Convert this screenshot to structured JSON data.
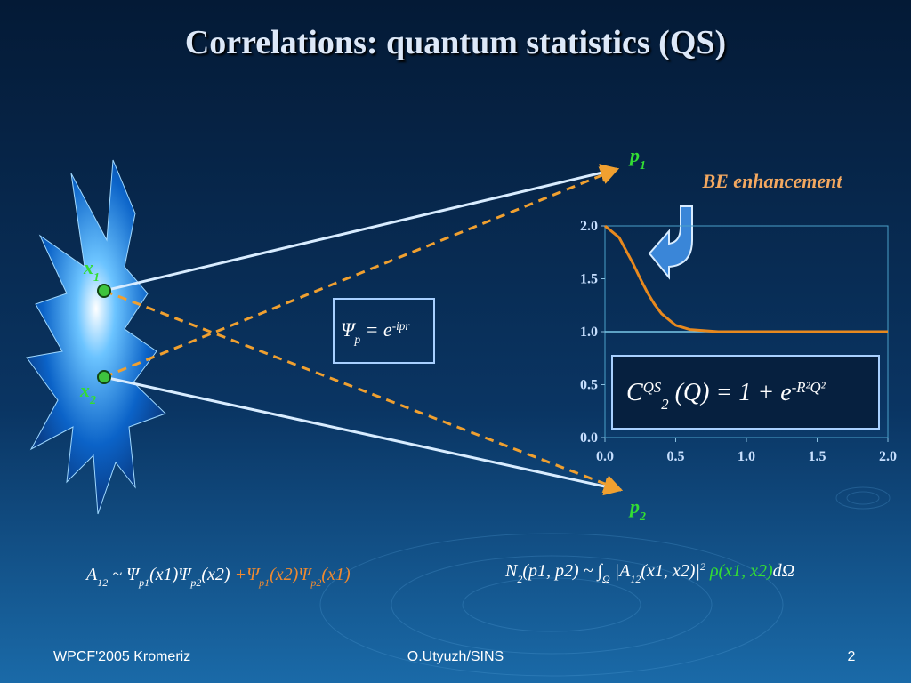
{
  "title": "Correlations: quantum statistics (QS)",
  "labels": {
    "p1": [
      "p",
      "1"
    ],
    "p2": [
      "p",
      "2"
    ],
    "x1": [
      "x",
      "1"
    ],
    "x2": [
      "x",
      "2"
    ]
  },
  "be_label": "BE enhancement",
  "psi_formula": [
    "Ψ",
    "p",
    " = ",
    "e",
    "-ipr"
  ],
  "cqs_formula": [
    "C",
    "QS",
    "2",
    " (Q) = 1 + e",
    "-R²Q²"
  ],
  "amplitude_formula": [
    "A",
    "12",
    " ~ Ψ",
    "p1",
    "(x1)Ψ",
    "p2",
    "(x2) ",
    "+Ψ",
    "p1",
    "(x2)Ψ",
    "p2",
    "(x1)"
  ],
  "n2_formula": [
    "N",
    "2",
    "(p1, p2) ~ ∫",
    "Ω",
    " |A",
    "12",
    "(x1, x2)|",
    "2",
    " ρ(x1, x2)",
    "dΩ"
  ],
  "footer": {
    "left": "WPCF'2005 Kromeriz",
    "center": "O.Utyuzh/SINS",
    "right": "2"
  },
  "chart_data": {
    "type": "line",
    "color": "#e8891e",
    "x": [
      0,
      0.1,
      0.2,
      0.25,
      0.3,
      0.35,
      0.4,
      0.5,
      0.6,
      0.8,
      1.0,
      1.5,
      2.0
    ],
    "values": [
      2.0,
      1.89,
      1.64,
      1.5,
      1.37,
      1.26,
      1.17,
      1.06,
      1.02,
      1.0,
      1.0,
      1.0,
      1.0
    ],
    "reference_line": 1.0,
    "xlim": [
      0,
      2
    ],
    "ylim": [
      0,
      2
    ],
    "xticks": [
      {
        "value": 0,
        "label": "0.0"
      },
      {
        "value": 0.5,
        "label": "0.5"
      },
      {
        "value": 1,
        "label": "1.0"
      },
      {
        "value": 1.5,
        "label": "1.5"
      },
      {
        "value": 2,
        "label": "2.0"
      }
    ],
    "yticks": [
      {
        "value": 0,
        "label": "0.0"
      },
      {
        "value": 0.5,
        "label": "0.5"
      },
      {
        "value": 1,
        "label": "1.0"
      },
      {
        "value": 1.5,
        "label": "1.5"
      },
      {
        "value": 2,
        "label": "2.0"
      }
    ]
  }
}
